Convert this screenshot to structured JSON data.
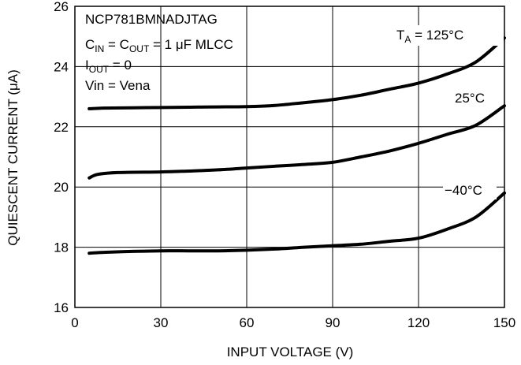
{
  "chart_data": {
    "type": "line",
    "xlabel": "INPUT VOLTAGE (V)",
    "ylabel": "QUIESCENT CURRENT (μA)",
    "xlim": [
      0,
      150
    ],
    "ylim": [
      16,
      26
    ],
    "xticks": [
      0,
      30,
      60,
      90,
      120,
      150
    ],
    "yticks": [
      16,
      18,
      20,
      22,
      24,
      26
    ],
    "grid": true,
    "annotations": {
      "device": "NCP781BMNADJTAG",
      "cap_prefix": "C",
      "cap_in_sub": "IN",
      "cap_mid": " = C",
      "cap_out_sub": "OUT",
      "cap_value": " = 1 μF MLCC",
      "iout_prefix": "I",
      "iout_sub": "OUT",
      "iout_value": " = 0",
      "vin": "Vin = Vena"
    },
    "series": [
      {
        "name": "T_A = 125°C",
        "label_prefix": "T",
        "label_sub": "A",
        "label_value": " = 125°C",
        "color": "#000000",
        "x": [
          5,
          10,
          20,
          30,
          40,
          50,
          60,
          70,
          80,
          90,
          100,
          110,
          120,
          130,
          140,
          150
        ],
        "y": [
          22.6,
          22.62,
          22.63,
          22.64,
          22.65,
          22.66,
          22.67,
          22.71,
          22.8,
          22.9,
          23.05,
          23.25,
          23.45,
          23.75,
          24.15,
          24.95
        ]
      },
      {
        "name": "25°C",
        "label_prefix": "25°C",
        "label_sub": "",
        "label_value": "",
        "color": "#000000",
        "x": [
          5,
          8,
          15,
          30,
          40,
          50,
          60,
          70,
          80,
          90,
          100,
          110,
          120,
          130,
          140,
          150
        ],
        "y": [
          20.3,
          20.42,
          20.48,
          20.5,
          20.53,
          20.57,
          20.63,
          20.69,
          20.75,
          20.82,
          21.0,
          21.2,
          21.45,
          21.75,
          22.05,
          22.7
        ]
      },
      {
        "name": "−40°C",
        "label_prefix": "−40°C",
        "label_sub": "",
        "label_value": "",
        "color": "#000000",
        "x": [
          5,
          10,
          20,
          30,
          40,
          50,
          60,
          70,
          80,
          90,
          100,
          110,
          120,
          130,
          140,
          150
        ],
        "y": [
          17.8,
          17.83,
          17.86,
          17.88,
          17.88,
          17.88,
          17.9,
          17.94,
          18.0,
          18.05,
          18.1,
          18.2,
          18.3,
          18.6,
          19.0,
          19.8
        ]
      }
    ]
  }
}
